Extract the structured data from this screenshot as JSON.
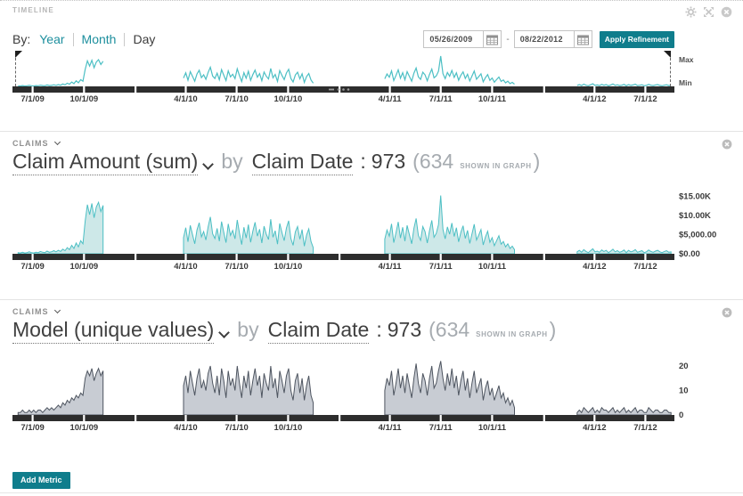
{
  "panel": {
    "title": "TIMELINE",
    "icons": [
      "gear-icon",
      "resize-icon",
      "close-icon"
    ]
  },
  "controls": {
    "by_label": "By:",
    "granularity_tabs": [
      {
        "label": "Year",
        "active": false
      },
      {
        "label": "Month",
        "active": false
      },
      {
        "label": "Day",
        "active": true
      }
    ],
    "date_from": "05/26/2009",
    "date_separator": "-",
    "date_to": "08/22/2012",
    "apply_button": "Apply Refinement",
    "calendar_icon": "calendar-icon"
  },
  "overview": {
    "max_label": "Max",
    "min_label": "Min"
  },
  "sections": [
    {
      "group_label": "CLAIMS",
      "metric_label": "Claim Amount (sum)",
      "by_label": "by",
      "dimension_label": "Claim Date",
      "colon": ":",
      "total_count": "973",
      "paren_open": "(",
      "shown_count": "634",
      "shown_caption": "SHOWN IN GRAPH",
      "paren_close": ")"
    },
    {
      "group_label": "CLAIMS",
      "metric_label": "Model (unique values)",
      "by_label": "by",
      "dimension_label": "Claim Date",
      "colon": ":",
      "total_count": "973",
      "paren_open": "(",
      "shown_count": "634",
      "shown_caption": "SHOWN IN GRAPH",
      "paren_close": ")"
    }
  ],
  "footer": {
    "add_metric_button": "Add Metric"
  },
  "colors": {
    "accent_teal": "#0F7D8C",
    "chart_teal_line": "#4CBFC4",
    "chart_teal_fill": "#CDE8E8",
    "chart_gray_line": "#4E5560",
    "chart_gray_fill": "#C8CCD3",
    "axis_bar": "#2D2D2D",
    "gray_text": "#A6ABB0"
  },
  "chart_data": {
    "x_start_date": "05/26/2009",
    "x_end_date": "08/22/2012",
    "days_total": 1184,
    "x_ticks": [
      {
        "label": "7/1/09",
        "day": 36
      },
      {
        "label": "10/1/09",
        "day": 128
      },
      {
        "label": "4/1/10",
        "day": 310
      },
      {
        "label": "7/1/10",
        "day": 401
      },
      {
        "label": "10/1/10",
        "day": 493
      },
      {
        "label": "4/1/11",
        "day": 675
      },
      {
        "label": "7/1/11",
        "day": 766
      },
      {
        "label": "10/1/11",
        "day": 858
      },
      {
        "label": "4/1/12",
        "day": 1041
      },
      {
        "label": "7/1/12",
        "day": 1132
      }
    ],
    "minor_tick_days": [
      220,
      585,
      951
    ],
    "series_sets": {
      "claims_amount_k": {
        "unit": "USD thousands",
        "step_days": 4,
        "clusters": [
          {
            "start_day": 10,
            "values": [
              0.3,
              0.2,
              0.4,
              0.2,
              0.3,
              0.5,
              0.3,
              0.2,
              0.4,
              0.3,
              0.6,
              0.4,
              0.3,
              0.7,
              0.4,
              0.5,
              0.8,
              0.5,
              0.9,
              0.6,
              1.2,
              0.8,
              1.6,
              1.1,
              2.2,
              1.4,
              2.8,
              1.8,
              3.4,
              2.6,
              8.5,
              12.8,
              10.2,
              13.1,
              9.4,
              12.2,
              13.4,
              11.0,
              12.6
            ]
          },
          {
            "start_day": 306,
            "values": [
              4.2,
              6.8,
              3.1,
              7.4,
              5.0,
              2.6,
              6.2,
              8.1,
              4.4,
              5.8,
              3.6,
              7.0,
              9.6,
              5.2,
              4.0,
              6.6,
              3.3,
              8.4,
              5.6,
              2.9,
              7.8,
              4.8,
              6.1,
              3.9,
              8.8,
              5.4,
              2.4,
              6.9,
              4.1,
              7.6,
              3.0,
              5.9,
              8.2,
              4.6,
              6.4,
              2.8,
              7.2,
              5.1,
              3.7,
              9.0,
              4.3,
              6.0,
              2.5,
              7.9,
              5.5,
              3.4,
              6.7,
              8.6,
              4.0,
              2.2,
              5.7,
              7.1,
              3.8,
              6.3,
              2.0,
              4.9,
              6.5,
              3.2,
              1.6
            ]
          },
          {
            "start_day": 666,
            "values": [
              3.8,
              6.2,
              4.6,
              7.8,
              2.9,
              5.5,
              8.3,
              4.1,
              6.9,
              3.3,
              7.4,
              5.0,
              2.6,
              6.6,
              9.2,
              4.8,
              3.5,
              7.1,
              5.8,
              2.8,
              6.0,
              8.7,
              4.3,
              5.3,
              7.6,
              15.2,
              6.4,
              3.9,
              7.0,
              5.1,
              8.0,
              4.5,
              6.8,
              3.1,
              5.6,
              7.3,
              4.0,
              6.1,
              2.7,
              5.2,
              7.7,
              3.6,
              4.9,
              6.3,
              2.3,
              4.4,
              5.9,
              3.0,
              4.2,
              2.1,
              3.4,
              4.7,
              2.5,
              3.2,
              1.8,
              2.6,
              1.4,
              2.0,
              1.1
            ]
          },
          {
            "start_day": 1010,
            "values": [
              0.5,
              0.9,
              0.4,
              1.1,
              0.6,
              0.3,
              0.8,
              1.3,
              0.5,
              0.7,
              0.4,
              1.0,
              0.6,
              0.9,
              0.3,
              0.7,
              1.2,
              0.5,
              0.8,
              0.4,
              0.6,
              1.0,
              0.3,
              0.9,
              0.5,
              0.7,
              1.1,
              0.4,
              0.6,
              0.8,
              0.3,
              0.5,
              1.0,
              0.6,
              0.4,
              0.7,
              0.9,
              0.5,
              0.3,
              0.6,
              0.8,
              0.4,
              0.5
            ]
          }
        ]
      },
      "model_unique": {
        "unit": "count",
        "step_days": 4,
        "clusters": [
          {
            "start_day": 10,
            "values": [
              1,
              1,
              2,
              1,
              1,
              2,
              1,
              2,
              1,
              2,
              2,
              1,
              2,
              3,
              2,
              3,
              2,
              3,
              4,
              3,
              5,
              4,
              6,
              5,
              7,
              6,
              8,
              7,
              9,
              8,
              15,
              18,
              16,
              19,
              14,
              17,
              19,
              16,
              18
            ]
          },
          {
            "start_day": 306,
            "values": [
              12,
              16,
              9,
              18,
              13,
              8,
              15,
              19,
              11,
              14,
              10,
              17,
              20,
              13,
              9,
              16,
              8,
              19,
              14,
              7,
              18,
              12,
              15,
              10,
              20,
              13,
              7,
              16,
              11,
              18,
              8,
              14,
              19,
              12,
              16,
              7,
              17,
              13,
              10,
              20,
              11,
              15,
              7,
              18,
              14,
              9,
              16,
              19,
              10,
              6,
              14,
              17,
              9,
              15,
              6,
              12,
              16,
              8,
              5
            ]
          },
          {
            "start_day": 666,
            "values": [
              10,
              15,
              12,
              18,
              8,
              13,
              19,
              11,
              16,
              9,
              17,
              12,
              7,
              15,
              21,
              13,
              9,
              17,
              14,
              8,
              15,
              20,
              11,
              13,
              18,
              22,
              15,
              10,
              17,
              12,
              19,
              11,
              16,
              8,
              14,
              18,
              10,
              15,
              7,
              13,
              18,
              9,
              12,
              15,
              6,
              11,
              14,
              8,
              11,
              6,
              9,
              12,
              7,
              9,
              5,
              7,
              4,
              6,
              3
            ]
          },
          {
            "start_day": 1010,
            "values": [
              1,
              2,
              1,
              3,
              2,
              1,
              2,
              3,
              1,
              2,
              1,
              3,
              2,
              2,
              1,
              2,
              3,
              1,
              2,
              1,
              2,
              3,
              1,
              2,
              1,
              2,
              3,
              1,
              2,
              2,
              1,
              1,
              3,
              2,
              1,
              2,
              2,
              1,
              1,
              2,
              2,
              1,
              1
            ]
          }
        ]
      }
    },
    "charts": [
      {
        "id": "overview",
        "type": "line",
        "data_ref": "claims_amount_k",
        "style": "teal",
        "y_right_labels": [
          "Max",
          "Min"
        ],
        "y_max": 17,
        "show_gap_dots": true
      },
      {
        "id": "claim_amount_by_date",
        "type": "area",
        "data_ref": "claims_amount_k",
        "style": "teal",
        "y_ticks": [
          {
            "label": "$15.00K",
            "value": 15
          },
          {
            "label": "$10.00K",
            "value": 10
          },
          {
            "label": "$5,000.00",
            "value": 5
          },
          {
            "label": "$0.00",
            "value": 0
          }
        ],
        "y_max": 16
      },
      {
        "id": "model_by_date",
        "type": "area",
        "data_ref": "model_unique",
        "style": "gray",
        "y_ticks": [
          {
            "label": "20",
            "value": 20
          },
          {
            "label": "10",
            "value": 10
          },
          {
            "label": "0",
            "value": 0
          }
        ],
        "y_max": 24
      }
    ]
  }
}
